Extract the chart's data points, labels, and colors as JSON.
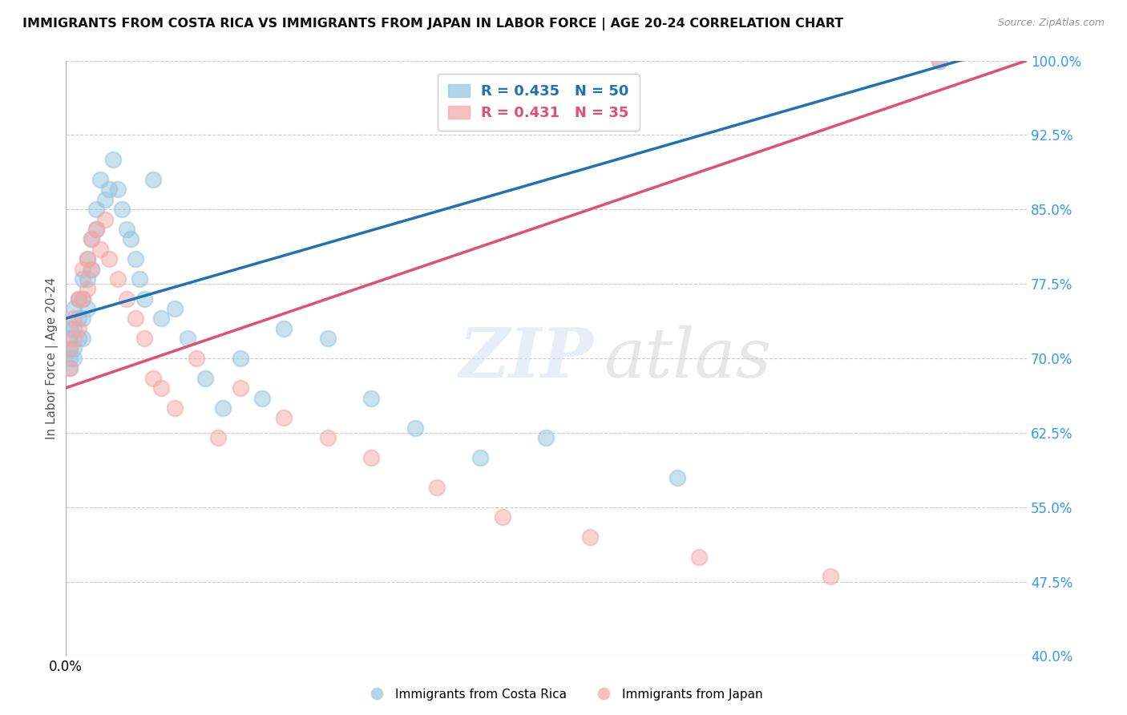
{
  "title": "IMMIGRANTS FROM COSTA RICA VS IMMIGRANTS FROM JAPAN IN LABOR FORCE | AGE 20-24 CORRELATION CHART",
  "source": "Source: ZipAtlas.com",
  "ylabel": "In Labor Force | Age 20-24",
  "xlim": [
    0.0,
    0.22
  ],
  "ylim": [
    0.4,
    1.0
  ],
  "yticks": [
    0.4,
    0.475,
    0.55,
    0.625,
    0.7,
    0.775,
    0.85,
    0.925,
    1.0
  ],
  "ytick_labels": [
    "40.0%",
    "47.5%",
    "55.0%",
    "62.5%",
    "70.0%",
    "77.5%",
    "85.0%",
    "92.5%",
    "100.0%"
  ],
  "costa_rica_R": 0.435,
  "costa_rica_N": 50,
  "japan_R": 0.431,
  "japan_N": 35,
  "costa_rica_color": "#92c5de",
  "japan_color": "#f4a6a6",
  "costa_rica_line_color": "#2171b5",
  "japan_line_color": "#e05070",
  "legend_label_cr": "Immigrants from Costa Rica",
  "legend_label_jp": "Immigrants from Japan",
  "costa_rica_x": [
    0.001,
    0.001,
    0.001,
    0.001,
    0.001,
    0.002,
    0.002,
    0.002,
    0.002,
    0.003,
    0.003,
    0.003,
    0.004,
    0.004,
    0.004,
    0.004,
    0.005,
    0.005,
    0.005,
    0.006,
    0.006,
    0.007,
    0.007,
    0.008,
    0.009,
    0.01,
    0.011,
    0.012,
    0.013,
    0.014,
    0.015,
    0.016,
    0.017,
    0.018,
    0.02,
    0.022,
    0.025,
    0.028,
    0.032,
    0.036,
    0.04,
    0.045,
    0.05,
    0.06,
    0.07,
    0.08,
    0.095,
    0.11,
    0.14,
    0.2
  ],
  "costa_rica_y": [
    0.73,
    0.72,
    0.71,
    0.7,
    0.69,
    0.75,
    0.73,
    0.71,
    0.7,
    0.76,
    0.74,
    0.72,
    0.78,
    0.76,
    0.74,
    0.72,
    0.8,
    0.78,
    0.75,
    0.82,
    0.79,
    0.85,
    0.83,
    0.88,
    0.86,
    0.87,
    0.9,
    0.87,
    0.85,
    0.83,
    0.82,
    0.8,
    0.78,
    0.76,
    0.88,
    0.74,
    0.75,
    0.72,
    0.68,
    0.65,
    0.7,
    0.66,
    0.73,
    0.72,
    0.66,
    0.63,
    0.6,
    0.62,
    0.58,
    1.0
  ],
  "japan_x": [
    0.001,
    0.001,
    0.002,
    0.002,
    0.003,
    0.003,
    0.004,
    0.004,
    0.005,
    0.005,
    0.006,
    0.006,
    0.007,
    0.008,
    0.009,
    0.01,
    0.012,
    0.014,
    0.016,
    0.018,
    0.02,
    0.022,
    0.025,
    0.03,
    0.035,
    0.04,
    0.05,
    0.06,
    0.07,
    0.085,
    0.1,
    0.12,
    0.145,
    0.175,
    0.2
  ],
  "japan_y": [
    0.71,
    0.69,
    0.74,
    0.72,
    0.76,
    0.73,
    0.79,
    0.76,
    0.8,
    0.77,
    0.82,
    0.79,
    0.83,
    0.81,
    0.84,
    0.8,
    0.78,
    0.76,
    0.74,
    0.72,
    0.68,
    0.67,
    0.65,
    0.7,
    0.62,
    0.67,
    0.64,
    0.62,
    0.6,
    0.57,
    0.54,
    0.52,
    0.5,
    0.48,
    1.0
  ],
  "background_color": "#ffffff",
  "grid_color": "#cccccc"
}
